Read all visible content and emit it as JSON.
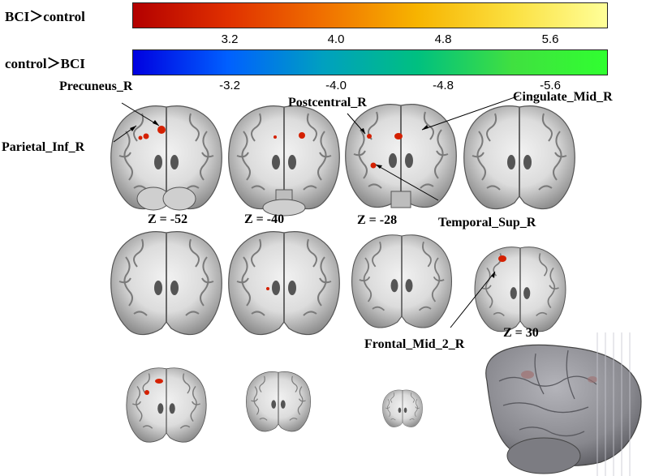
{
  "colorbars": [
    {
      "label": "BCI＞control",
      "ticks": [
        "3.2",
        "4.0",
        "4.8",
        "5.6"
      ],
      "gradient": [
        "#b30000",
        "#e03000",
        "#f07000",
        "#f7b400",
        "#fbe040",
        "#ffff99"
      ]
    },
    {
      "label": "control＞BCI",
      "ticks": [
        "-3.2",
        "-4.0",
        "-4.8",
        "-5.6"
      ],
      "gradient": [
        "#0000e0",
        "#0060ff",
        "#00a0c0",
        "#00c080",
        "#40e040",
        "#30ff30"
      ]
    }
  ],
  "regions": {
    "precuneus": "Precuneus_R",
    "parietal_inf": "Parietal_Inf_R",
    "postcentral": "Postcentral_R",
    "cingulate_mid": "Cingulate_Mid_R",
    "temporal_sup": "Temporal_Sup_R",
    "frontal_mid": "Frontal_Mid_2_R"
  },
  "slice_labels": [
    "Z = -52",
    "Z = -40",
    "Z = -28",
    "Z = 30"
  ],
  "colors": {
    "activation": "#d42000",
    "brain_tissue": "#b8b8b8",
    "white_matter": "#eeeeee",
    "rendered_brain": "#8a8a90"
  }
}
